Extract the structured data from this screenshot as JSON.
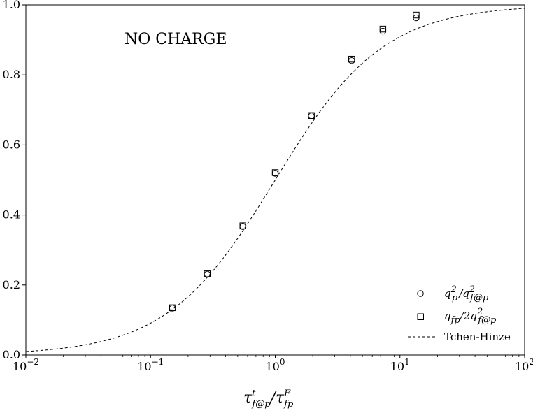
{
  "chart_data": {
    "type": "scatter",
    "x_scale": "log",
    "xlim": [
      0.01,
      100
    ],
    "ylim": [
      0.0,
      1.0
    ],
    "x_tick_labels": [
      {
        "base": "10",
        "exp": "−2"
      },
      {
        "base": "10",
        "exp": "−1"
      },
      {
        "base": "10",
        "exp": "0"
      },
      {
        "base": "10",
        "exp": "1"
      },
      {
        "base": "10",
        "exp": "2"
      }
    ],
    "y_ticks": [
      "0.0",
      "0.2",
      "0.4",
      "0.6",
      "0.8",
      "1.0"
    ],
    "y_tick_values": [
      0.0,
      0.2,
      0.4,
      0.6,
      0.8,
      1.0
    ],
    "annotation": "NO CHARGE",
    "xlabel": {
      "main": "τ",
      "sup": "t",
      "sub": "f@p",
      "slash": "/τ",
      "sup2": "F",
      "sub2": "fp"
    },
    "grid": false,
    "legend_placement": "lower-right",
    "series": [
      {
        "name": "q_p^2 / q_{f@p}^2",
        "legend": {
          "a": "q",
          "a_sup": "2",
          "a_sub": "p",
          "b": "/q",
          "b_sup": "2",
          "b_sub": "f@p"
        },
        "marker": "circle",
        "x": [
          0.15,
          0.285,
          0.55,
          1.0,
          1.95,
          4.1,
          7.3,
          13.5
        ],
        "y": [
          0.134,
          0.231,
          0.367,
          0.519,
          0.683,
          0.841,
          0.925,
          0.963
        ]
      },
      {
        "name": "q_fp / 2 q_{f@p}^2",
        "legend": {
          "a": "q",
          "a_sub": "fp",
          "b": "/2q",
          "b_sup": "2",
          "b_sub": "f@p"
        },
        "marker": "square",
        "x": [
          0.15,
          0.285,
          0.55,
          1.0,
          1.95,
          4.1,
          7.3,
          13.5
        ],
        "y": [
          0.135,
          0.232,
          0.369,
          0.521,
          0.684,
          0.845,
          0.931,
          0.971
        ]
      },
      {
        "name": "Tchen-Hinze",
        "marker": "dashed-line",
        "curve": "x/(1+x)",
        "x_range": [
          0.01,
          100
        ]
      }
    ]
  }
}
